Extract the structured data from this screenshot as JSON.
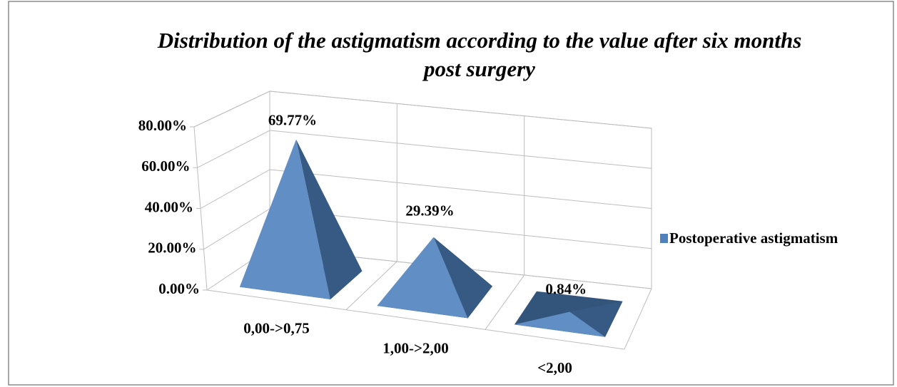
{
  "chart_data": {
    "type": "pyramid3d",
    "title": "Distribution of the astigmatism according to the value after six months post surgery",
    "categories": [
      "0,00->0,75",
      "1,00->2,00",
      "<2,00"
    ],
    "series": [
      {
        "name": "Postoperative astigmatism",
        "color": "#4f81bd",
        "values": [
          69.77,
          29.39,
          0.84
        ],
        "value_labels": [
          "69.77%",
          "29.39%",
          "0.84%"
        ]
      }
    ],
    "ylim": [
      0,
      80
    ],
    "yticks": [
      {
        "value": 0,
        "label": "0.00%"
      },
      {
        "value": 20,
        "label": "20.00%"
      },
      {
        "value": 40,
        "label": "40.00%"
      },
      {
        "value": 60,
        "label": "60.00%"
      },
      {
        "value": 80,
        "label": "80.00%"
      }
    ],
    "grid": true,
    "legend": "right"
  }
}
